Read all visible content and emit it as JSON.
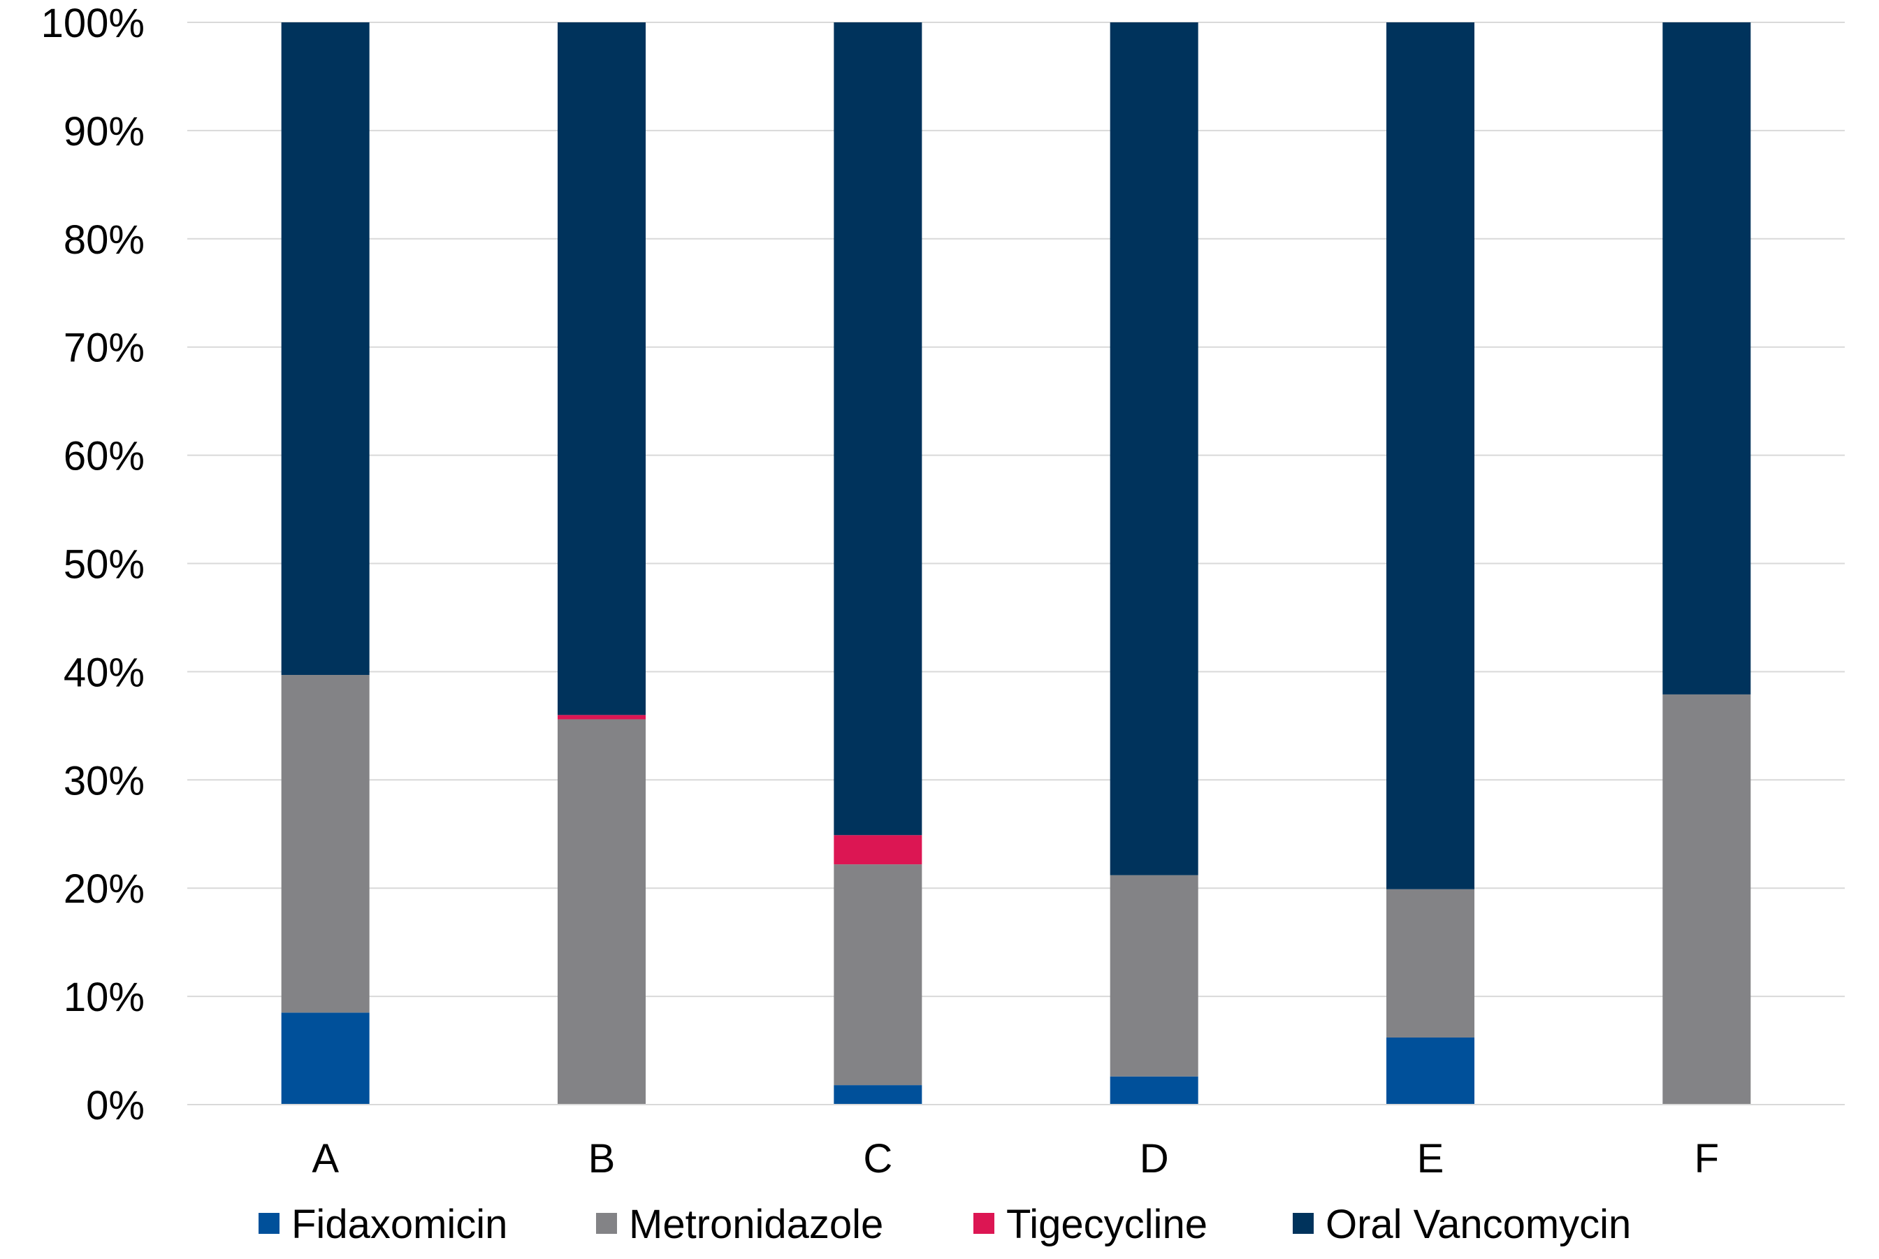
{
  "chart_data": {
    "type": "bar",
    "stacked": true,
    "percent": true,
    "categories": [
      "A",
      "B",
      "C",
      "D",
      "E",
      "F"
    ],
    "series": [
      {
        "name": "Fidaxomicin",
        "color": "#00509a",
        "values": [
          8.5,
          0,
          1.8,
          2.6,
          6.2,
          0
        ]
      },
      {
        "name": "Metronidazole",
        "color": "#838386",
        "values": [
          31.2,
          35.6,
          20.4,
          18.6,
          13.7,
          37.9
        ]
      },
      {
        "name": "Tigecycline",
        "color": "#dc1653",
        "values": [
          0,
          0.4,
          2.7,
          0,
          0,
          0
        ]
      },
      {
        "name": "Oral Vancomycin",
        "color": "#00335c",
        "values": [
          60.3,
          64.0,
          75.1,
          78.8,
          80.1,
          62.1
        ]
      }
    ],
    "title": "",
    "xlabel": "",
    "ylabel": "",
    "ylim": [
      0,
      100
    ],
    "yticks": [
      "0%",
      "10%",
      "20%",
      "30%",
      "40%",
      "50%",
      "60%",
      "70%",
      "80%",
      "90%",
      "100%"
    ],
    "grid": true,
    "legend_position": "bottom"
  }
}
